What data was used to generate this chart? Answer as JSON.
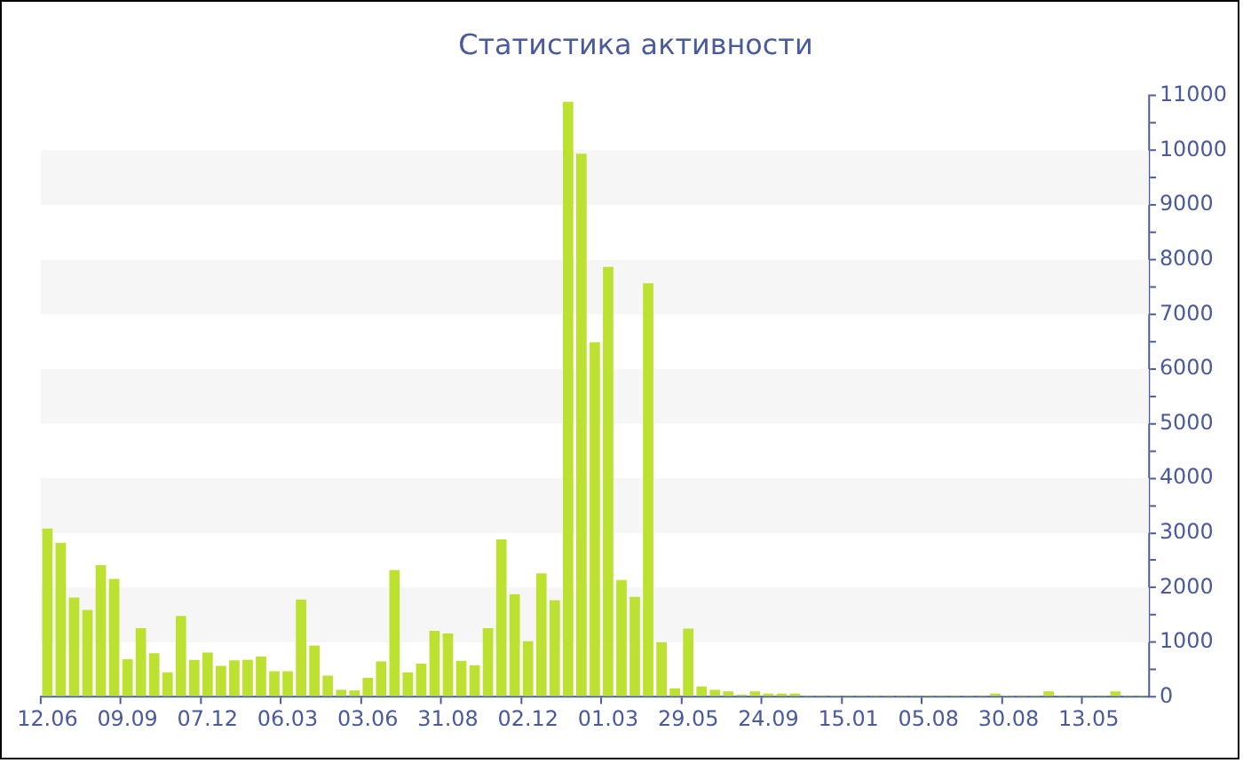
{
  "chart_data": {
    "type": "bar",
    "title": "Статистика активности",
    "categories": [
      "12.06",
      null,
      null,
      null,
      null,
      null,
      "09.09",
      null,
      null,
      null,
      null,
      null,
      "07.12",
      null,
      null,
      null,
      null,
      null,
      "06.03",
      null,
      null,
      null,
      null,
      null,
      "03.06",
      null,
      null,
      null,
      null,
      null,
      "31.08",
      null,
      null,
      null,
      null,
      null,
      "02.12",
      null,
      null,
      null,
      null,
      null,
      "01.03",
      null,
      null,
      null,
      null,
      null,
      "29.05",
      null,
      null,
      null,
      null,
      null,
      "24.09",
      null,
      null,
      null,
      null,
      null,
      "15.01",
      null,
      null,
      null,
      null,
      null,
      "05.08",
      null,
      null,
      null,
      null,
      null,
      "30.08",
      null,
      null,
      null,
      null,
      null,
      "13.05",
      null,
      null,
      null,
      null
    ],
    "values": [
      3080,
      2820,
      1820,
      1590,
      2410,
      2160,
      690,
      1260,
      800,
      450,
      1480,
      680,
      810,
      570,
      670,
      680,
      740,
      470,
      470,
      1780,
      940,
      390,
      130,
      120,
      350,
      650,
      2320,
      450,
      610,
      1210,
      1160,
      660,
      580,
      1260,
      2880,
      1880,
      1020,
      2260,
      1770,
      10890,
      9940,
      6490,
      7870,
      2140,
      1830,
      7570,
      1000,
      160,
      1250,
      190,
      130,
      100,
      40,
      100,
      60,
      60,
      60,
      30,
      30,
      30,
      30,
      30,
      30,
      30,
      30,
      30,
      30,
      30,
      30,
      30,
      30,
      60,
      30,
      30,
      30,
      100,
      30,
      30,
      30,
      30,
      100,
      30,
      30
    ],
    "color": "#bce130",
    "ylim": [
      0,
      11000
    ],
    "yticks": [
      0,
      {
        "value": 500,
        "label": null
      },
      1000,
      {
        "value": 1500,
        "label": null
      },
      2000,
      {
        "value": 2500,
        "label": null
      },
      3000,
      {
        "value": 3500,
        "label": null
      },
      4000,
      {
        "value": 4500,
        "label": null
      },
      5000,
      {
        "value": 5500,
        "label": null
      },
      6000,
      {
        "value": 6500,
        "label": null
      },
      7000,
      {
        "value": 7500,
        "label": null
      },
      8000,
      {
        "value": 8500,
        "label": null
      },
      9000,
      {
        "value": 9500,
        "label": null
      },
      10000,
      {
        "value": 10500,
        "label": null
      },
      11000
    ],
    "bands": [
      {
        "axis": "y",
        "from": 1000,
        "to": 2000,
        "color": "#f6f6f6"
      },
      {
        "axis": "y",
        "from": 3000,
        "to": 4000,
        "color": "#f6f6f6"
      },
      {
        "axis": "y",
        "from": 5000,
        "to": 6000,
        "color": "#f6f6f6"
      },
      {
        "axis": "y",
        "from": 7000,
        "to": 8000,
        "color": "#f6f6f6"
      },
      {
        "axis": "y",
        "from": 9000,
        "to": 10000,
        "color": "#f6f6f6"
      }
    ]
  }
}
